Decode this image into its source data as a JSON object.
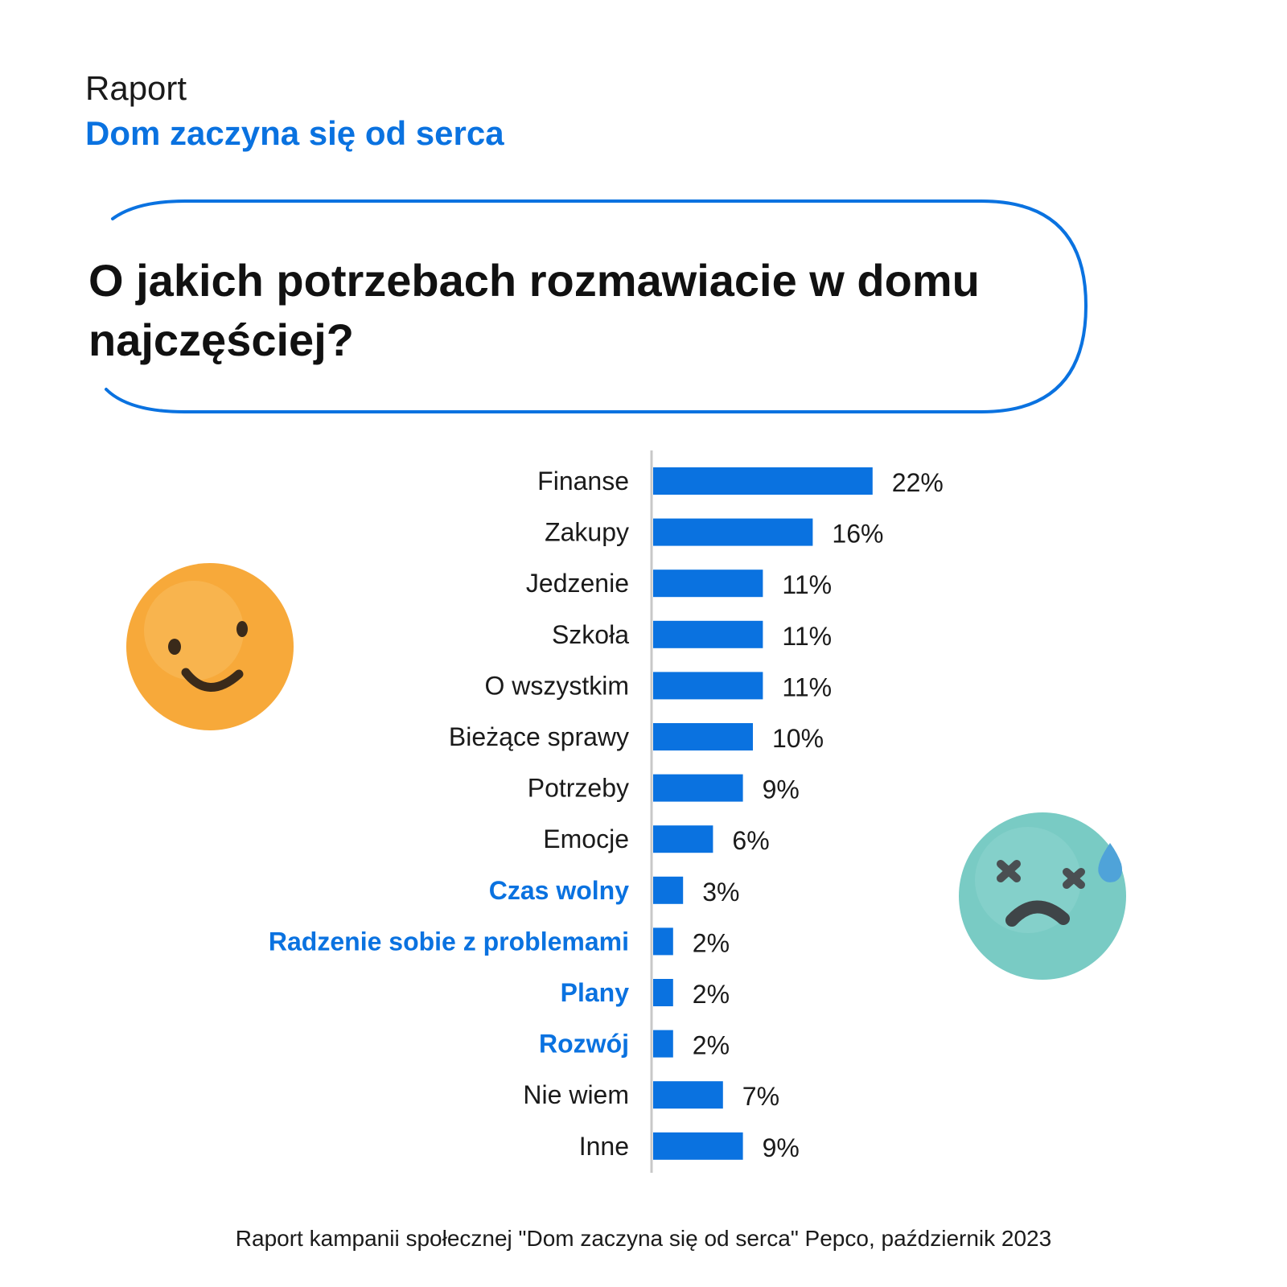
{
  "header": {
    "kicker": "Raport",
    "title": "Dom zaczyna się od serca"
  },
  "question": "O jakich potrzebach rozmawiacie w domu najczęściej?",
  "footer": "Raport kampanii społecznej \"Dom zaczyna się od serca\" Pepco, październik 2023",
  "colors": {
    "accent": "#0a72e0",
    "bar": "#0a72e0",
    "text": "#1a1a1a",
    "axis": "#c8c8c8",
    "smiley": "#f7a93a",
    "sad_face": "#79cbc4"
  },
  "icons": [
    "smiley-face-icon",
    "dizzy-sad-face-icon"
  ],
  "chart_data": {
    "type": "bar",
    "orientation": "horizontal",
    "categories": [
      "Finanse",
      "Zakupy",
      "Jedzenie",
      "Szkoła",
      "O wszystkim",
      "Bieżące sprawy",
      "Potrzeby",
      "Emocje",
      "Czas wolny",
      "Radzenie sobie z problemami",
      "Plany",
      "Rozwój",
      "Nie wiem",
      "Inne"
    ],
    "values": [
      22,
      16,
      11,
      11,
      11,
      10,
      9,
      6,
      3,
      2,
      2,
      2,
      7,
      9
    ],
    "value_labels": [
      "22%",
      "16%",
      "11%",
      "11%",
      "11%",
      "10%",
      "9%",
      "6%",
      "3%",
      "2%",
      "2%",
      "2%",
      "7%",
      "9%"
    ],
    "highlighted": [
      false,
      false,
      false,
      false,
      false,
      false,
      false,
      false,
      true,
      true,
      true,
      true,
      false,
      false
    ],
    "grid": false,
    "legend": "none"
  }
}
